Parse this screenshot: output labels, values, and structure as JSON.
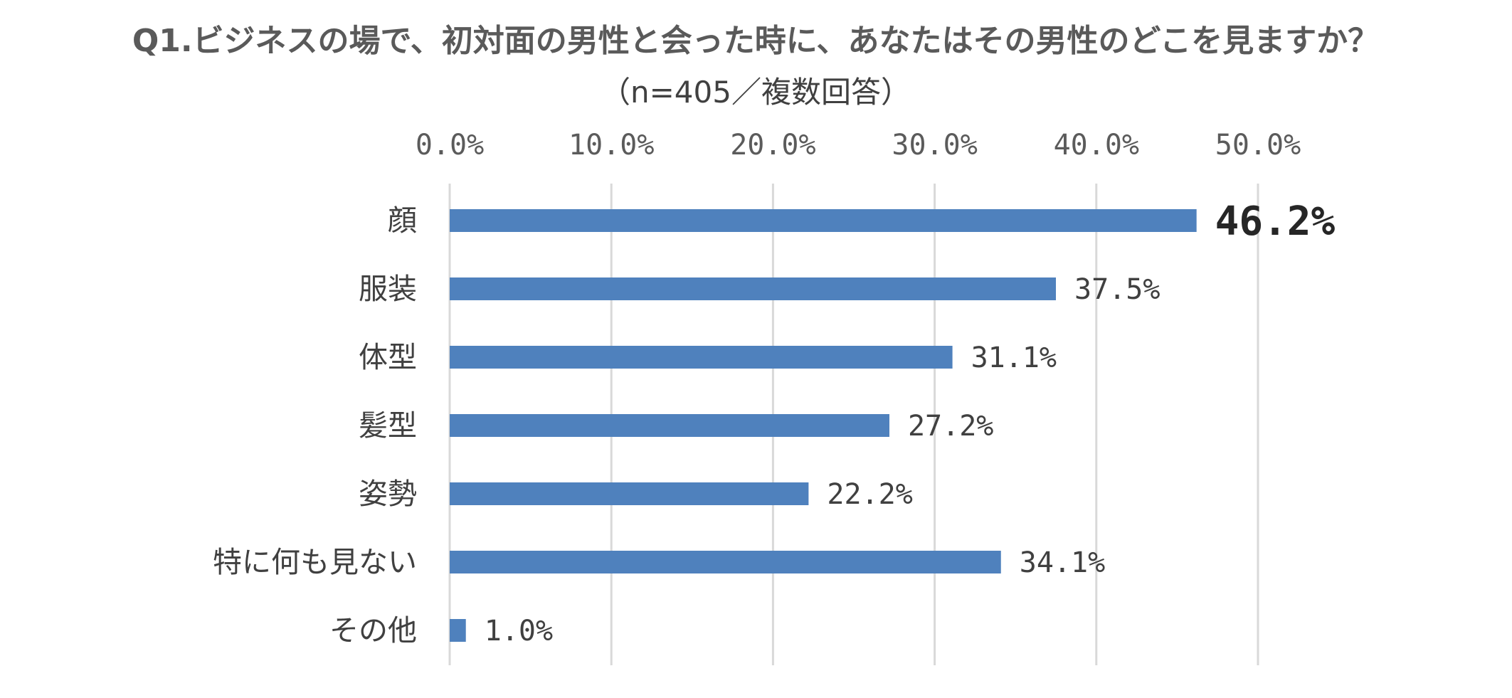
{
  "chart_data": {
    "type": "bar",
    "orientation": "horizontal",
    "title": "Q1.ビジネスの場で、初対面の男性と会った時に、あなたはその男性のどこを見ますか？",
    "subtitle": "（n=405／複数回答）",
    "categories": [
      "顔",
      "服装",
      "体型",
      "髪型",
      "姿勢",
      "特に何も見ない",
      "その他"
    ],
    "values": [
      46.2,
      37.5,
      31.1,
      27.2,
      22.2,
      34.1,
      1.0
    ],
    "value_labels": [
      "46.2%",
      "37.5%",
      "31.1%",
      "27.2%",
      "22.2%",
      "34.1%",
      "1.0%"
    ],
    "highlighted_index": 0,
    "xlim": [
      0,
      50
    ],
    "xticks": [
      0,
      10,
      20,
      30,
      40,
      50
    ],
    "xtick_labels": [
      "0.0%",
      "10.0%",
      "20.0%",
      "30.0%",
      "40.0%",
      "50.0%"
    ],
    "x_axis_position": "top",
    "grid": true,
    "legend": "none",
    "xlabel": "",
    "ylabel": "",
    "colors": {
      "bar": "#4f81bd",
      "gridline": "#d9d9d9",
      "title": "#5a5a5a",
      "text": "#404040"
    }
  }
}
